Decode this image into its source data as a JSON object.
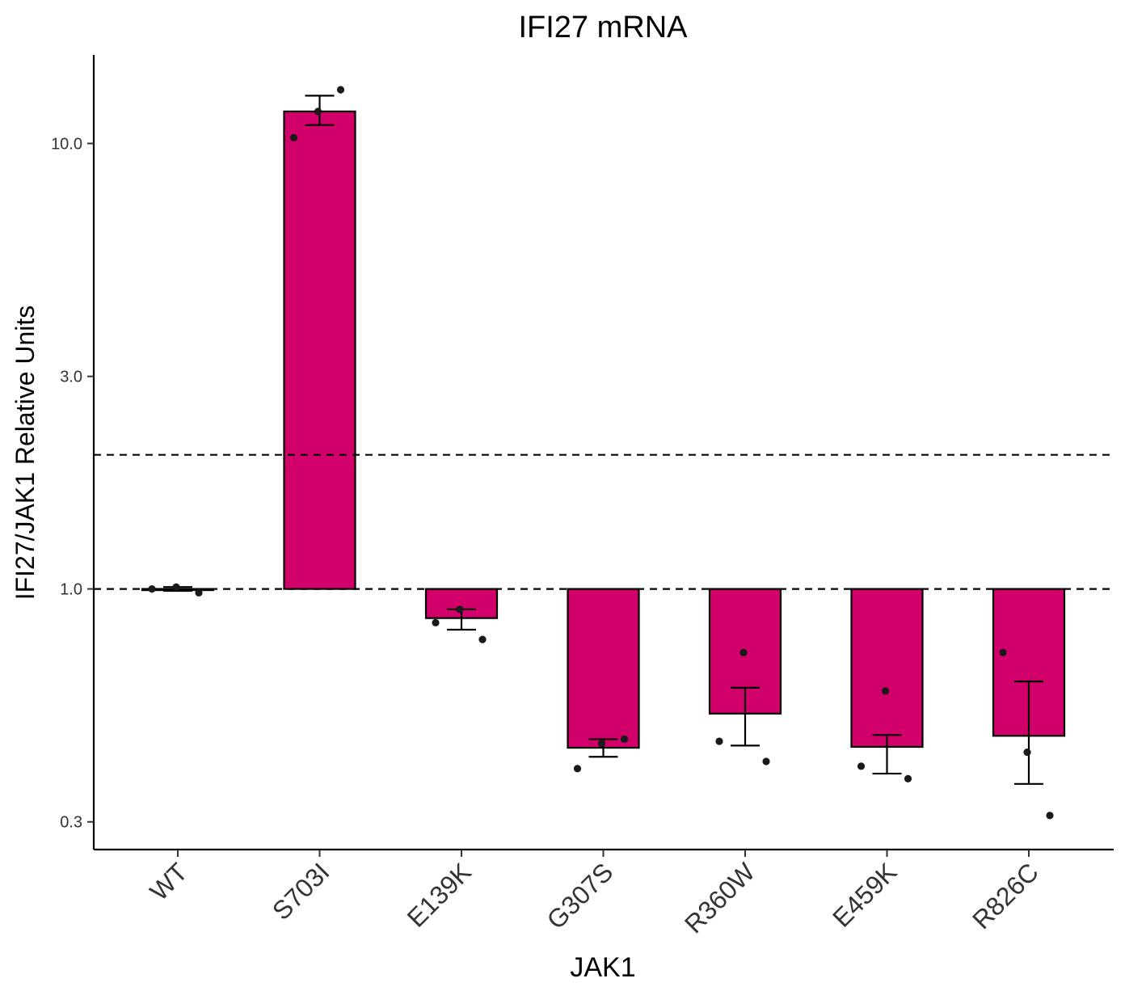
{
  "chart_data": {
    "type": "bar",
    "title": "IFI27 mRNA",
    "xlabel": "JAK1",
    "ylabel": "IFI27/JAK1 Relative Units",
    "y_scale": "log",
    "ylim": [
      0.26,
      15.8
    ],
    "yticks": [
      0.3,
      1.0,
      3.0,
      10.0
    ],
    "ytick_labels": [
      "0.3",
      "1.0",
      "3.0",
      "10.0"
    ],
    "baseline": 1.0,
    "reference_lines": [
      1.0,
      2.0
    ],
    "bar_color": "#D1006B",
    "categories": [
      "WT",
      "S703I",
      "E139K",
      "G307S",
      "R360W",
      "E459K",
      "R826C"
    ],
    "values": [
      1.0,
      11.8,
      0.86,
      0.44,
      0.525,
      0.442,
      0.468
    ],
    "error_low": [
      0.99,
      11.0,
      0.81,
      0.42,
      0.445,
      0.385,
      0.365
    ],
    "error_high": [
      1.01,
      12.8,
      0.9,
      0.46,
      0.6,
      0.47,
      0.62
    ],
    "points": [
      [
        1.0,
        1.01,
        0.98
      ],
      [
        10.3,
        11.8,
        13.2
      ],
      [
        0.84,
        0.9,
        0.77
      ],
      [
        0.395,
        0.45,
        0.46
      ],
      [
        0.455,
        0.72,
        0.41
      ],
      [
        0.4,
        0.59,
        0.375
      ],
      [
        0.72,
        0.43,
        0.31
      ]
    ],
    "grid": false,
    "legend": "none"
  }
}
